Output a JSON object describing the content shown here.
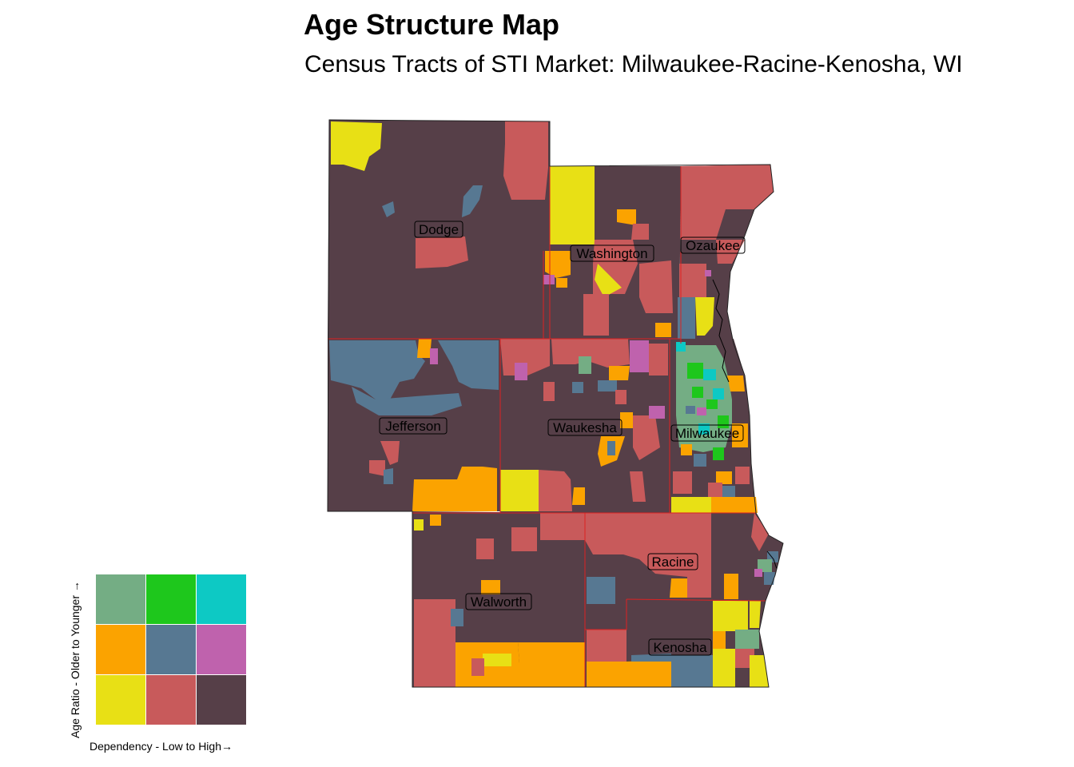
{
  "title": "Age Structure Map",
  "subtitle": "Census Tracts of STI Market: Milwaukee-Racine-Kenosha, WI",
  "counties": [
    {
      "name": "Dodge"
    },
    {
      "name": "Washington"
    },
    {
      "name": "Ozaukee"
    },
    {
      "name": "Jefferson"
    },
    {
      "name": "Waukesha"
    },
    {
      "name": "Milwaukee"
    },
    {
      "name": "Racine"
    },
    {
      "name": "Walworth"
    },
    {
      "name": "Kenosha"
    }
  ],
  "legend": {
    "x_label": "Dependency - Low to High",
    "y_label": "Age Ratio - Older to Younger",
    "arrow": "→",
    "grid": [
      [
        "#74ad84",
        "#1ec71c",
        "#0dc9c4"
      ],
      [
        "#fba300",
        "#577892",
        "#bf62ad"
      ],
      [
        "#e8e015",
        "#c85a5b",
        "#563f48"
      ]
    ]
  },
  "colors": {
    "low_low": "#e8e015",
    "mid_low": "#c85a5b",
    "high_low": "#563f48",
    "low_mid": "#fba300",
    "mid_mid": "#577892",
    "high_mid": "#bf62ad",
    "low_high": "#74ad84",
    "mid_high": "#1ec71c",
    "high_high": "#0dc9c4",
    "county_border": "#dd2222"
  }
}
